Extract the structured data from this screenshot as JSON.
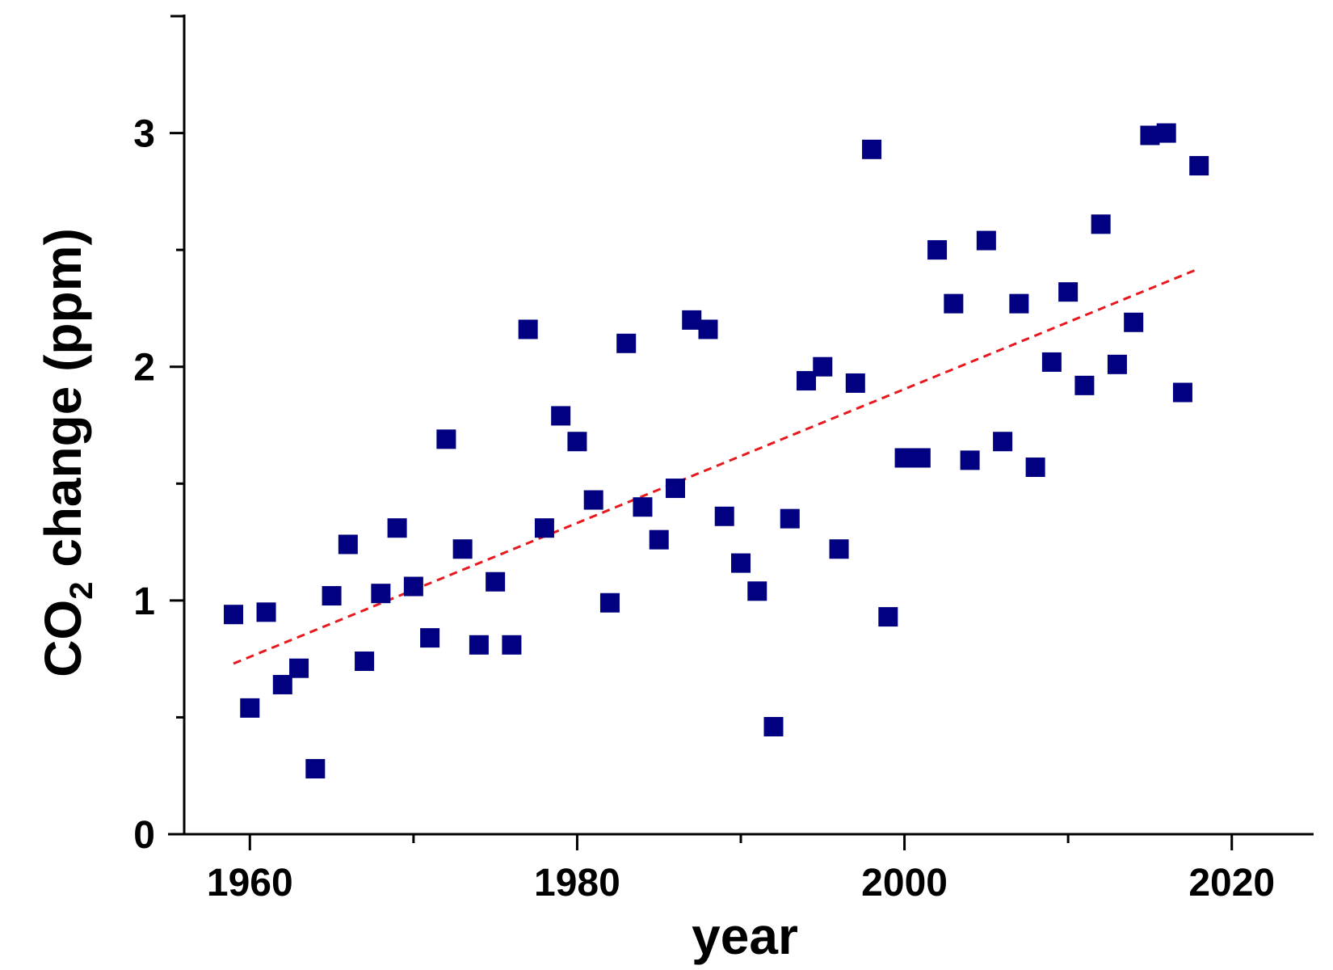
{
  "chart_data": {
    "type": "scatter",
    "title": "",
    "xlabel": "year",
    "ylabel_main": "CO",
    "ylabel_sub": "2",
    "ylabel_rest": " change (ppm)",
    "xlim": [
      1955,
      2025
    ],
    "ylim": [
      0,
      3.5
    ],
    "x_major_ticks": [
      1960,
      1980,
      2000,
      2020
    ],
    "x_minor_ticks": [
      1970,
      1990,
      2010
    ],
    "y_major_ticks": [
      0,
      1,
      2,
      3
    ],
    "y_minor_ticks": [
      0.5,
      1.5,
      2.5
    ],
    "grid": false,
    "marker_color": "#000080",
    "trend_color": "#e8191e",
    "series": [
      {
        "x": [
          1959,
          1960,
          1961,
          1962,
          1963,
          1964,
          1965,
          1966,
          1967,
          1968,
          1969,
          1970,
          1971,
          1972,
          1973,
          1974,
          1975,
          1976,
          1977,
          1978,
          1979,
          1980,
          1981,
          1982,
          1983,
          1984,
          1985,
          1986,
          1987,
          1988,
          1989,
          1990,
          1991,
          1992,
          1993,
          1994,
          1995,
          1996,
          1997,
          1998,
          1999,
          2000,
          2001,
          2002,
          2003,
          2004,
          2005,
          2006,
          2007,
          2008,
          2009,
          2010,
          2011,
          2012,
          2013,
          2014,
          2015,
          2016,
          2017,
          2018
        ],
        "y": [
          0.94,
          0.54,
          0.95,
          0.64,
          0.71,
          0.28,
          1.02,
          1.24,
          0.74,
          1.03,
          1.31,
          1.06,
          0.84,
          1.69,
          1.22,
          0.81,
          1.08,
          0.81,
          2.16,
          1.31,
          1.79,
          1.68,
          1.43,
          0.99,
          2.1,
          1.4,
          1.26,
          1.48,
          2.2,
          2.16,
          1.36,
          1.16,
          1.04,
          0.46,
          1.35,
          1.94,
          2.0,
          1.22,
          1.93,
          2.93,
          0.93,
          1.61,
          1.61,
          2.5,
          2.27,
          1.6,
          2.54,
          1.68,
          2.27,
          1.57,
          2.02,
          2.32,
          1.92,
          2.61,
          2.01,
          2.19,
          2.99,
          3.0,
          1.89,
          2.86
        ]
      }
    ],
    "trendline": {
      "x": [
        1959,
        2018
      ],
      "y": [
        0.73,
        2.42
      ]
    }
  }
}
